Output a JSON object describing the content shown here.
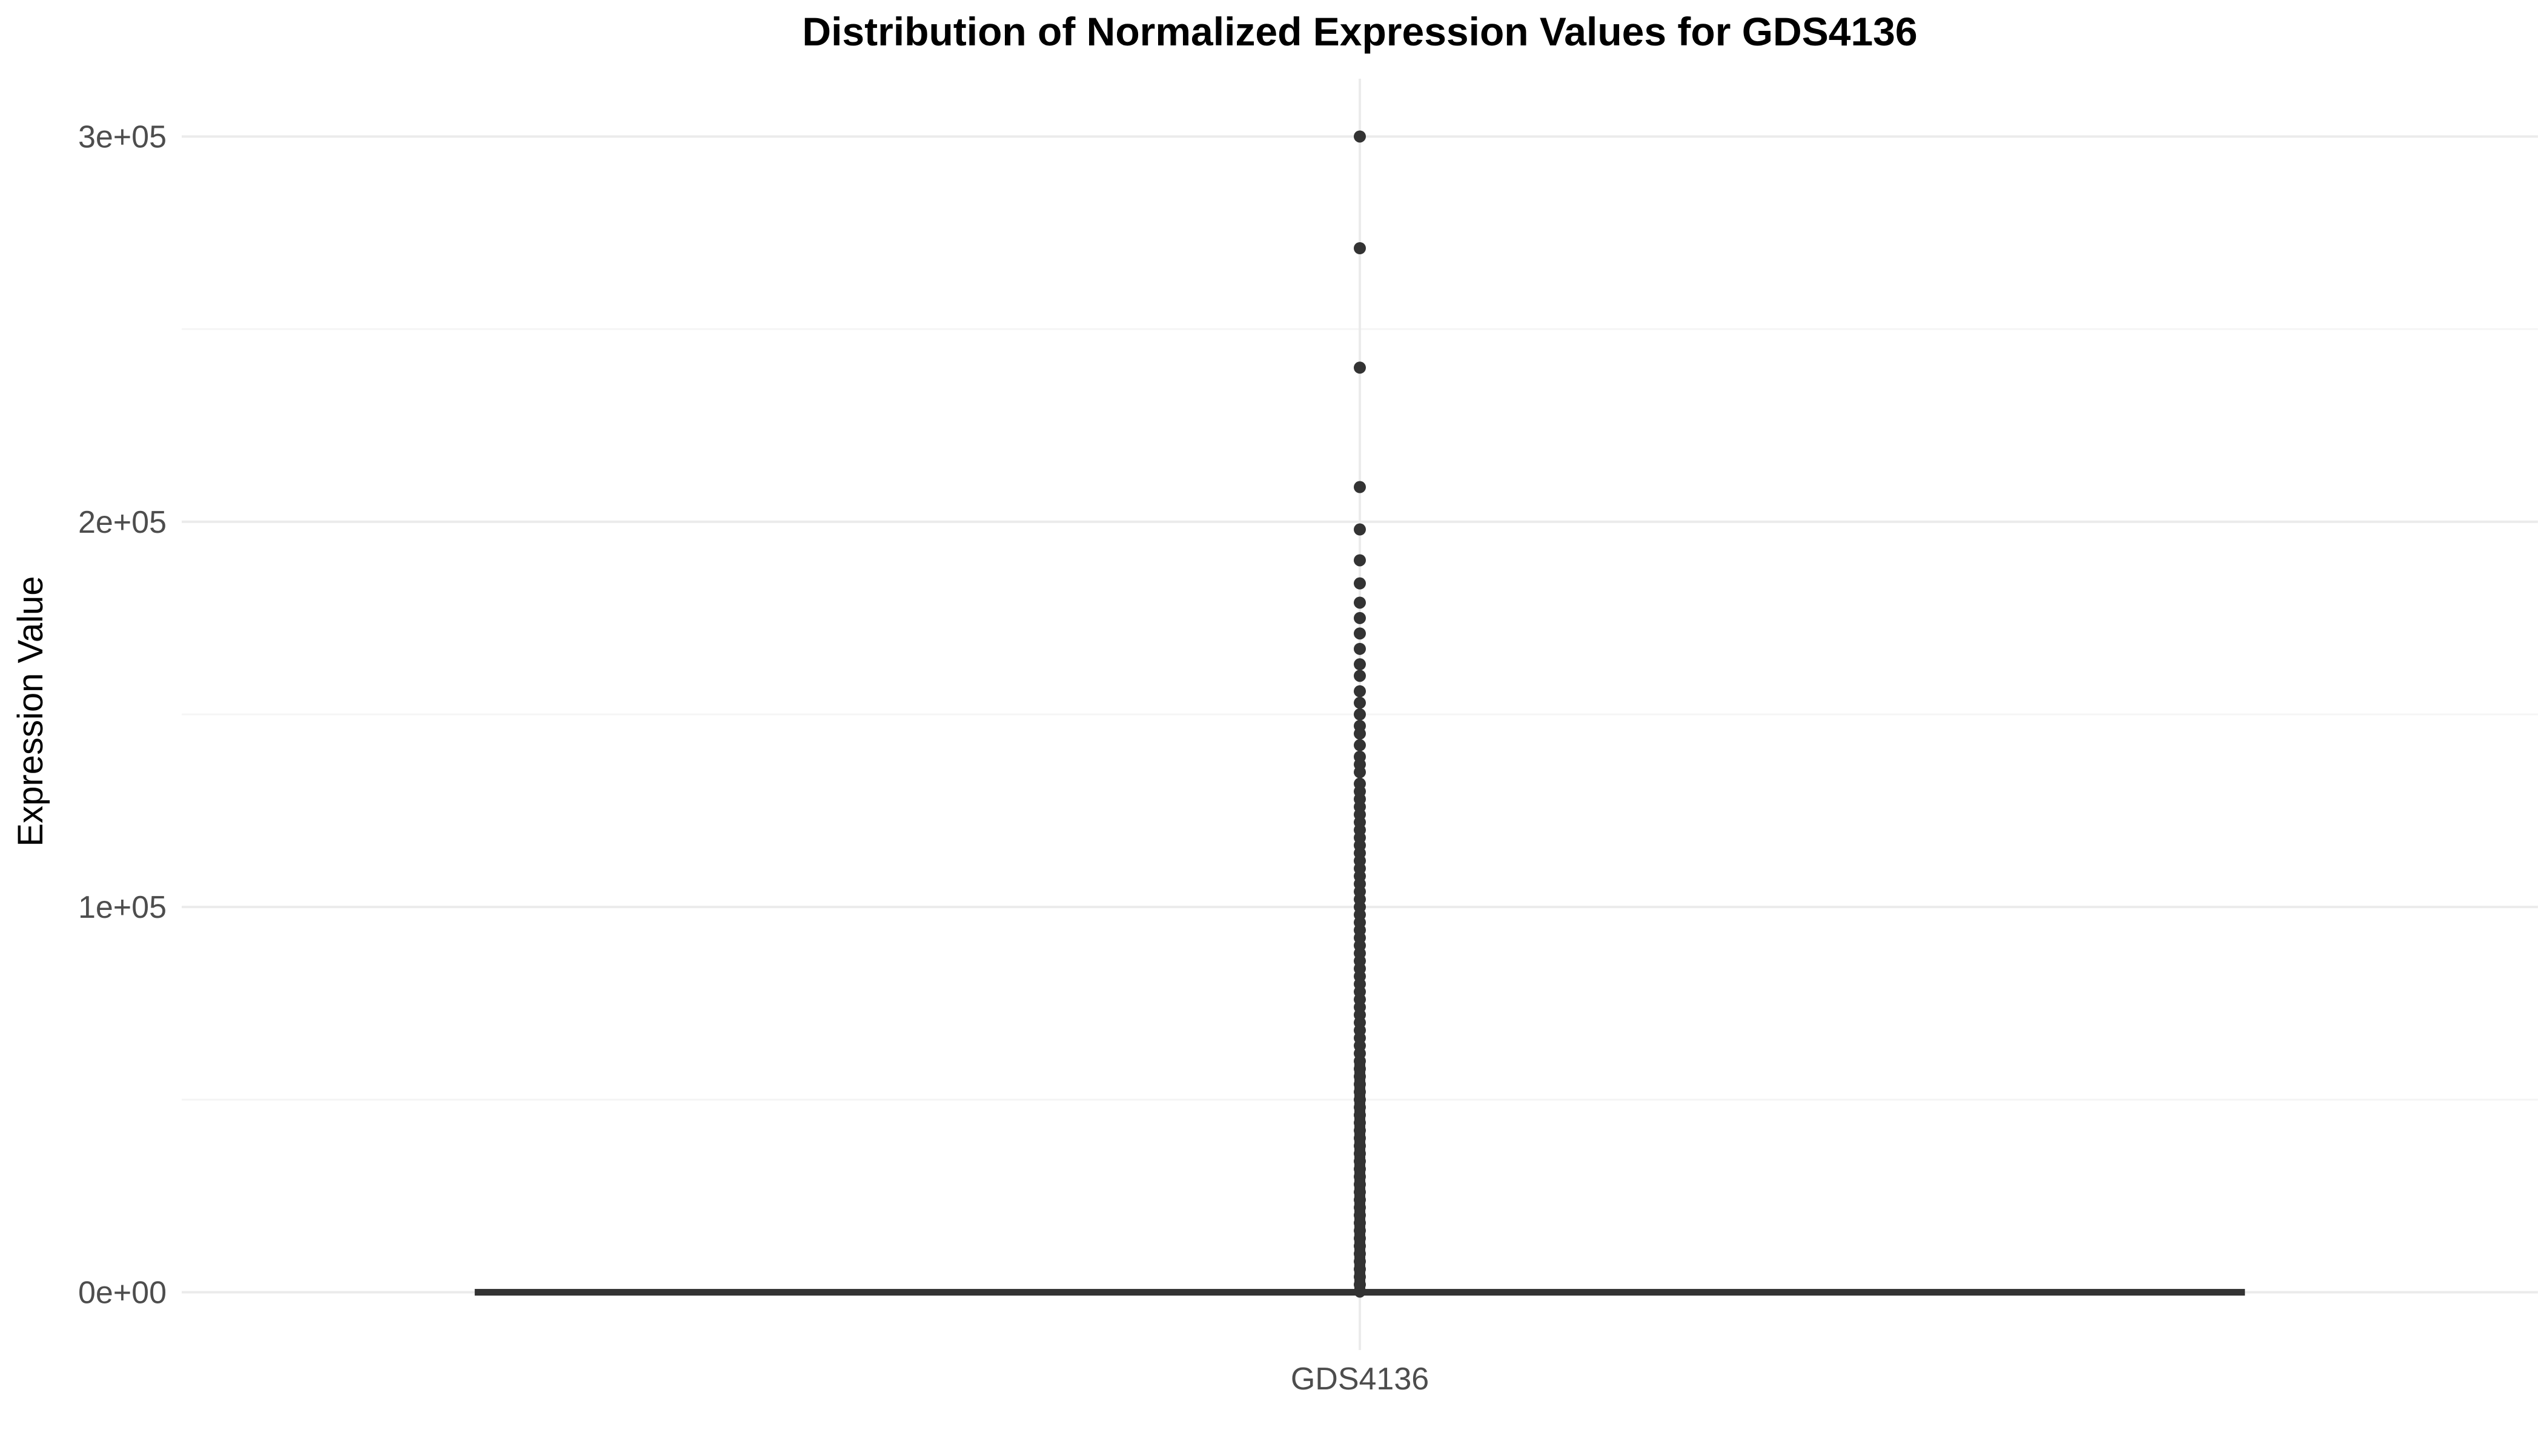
{
  "chart_data": {
    "type": "boxplot",
    "title": "Distribution of Normalized Expression Values for GDS4136",
    "xlabel": "",
    "ylabel": "Expression Value",
    "categories": [
      "GDS4136"
    ],
    "ylim": [
      -15000,
      315000
    ],
    "y_ticks": [
      {
        "value": 0,
        "label": "0e+00"
      },
      {
        "value": 100000,
        "label": "1e+05"
      },
      {
        "value": 200000,
        "label": "2e+05"
      },
      {
        "value": 300000,
        "label": "3e+05"
      }
    ],
    "y_minor_ticks": [
      50000,
      150000,
      250000
    ],
    "grid": true,
    "legend": "none",
    "colors": {
      "box": "#333333",
      "grid_major": "#ebebeb",
      "grid_minor": "#f5f5f5"
    },
    "box": {
      "category": "GDS4136",
      "q1": 0,
      "median": 0,
      "q3": 0,
      "whisker_low": 0,
      "whisker_high": 0
    },
    "outliers": [
      300000,
      271000,
      240000,
      209000,
      198000,
      190000,
      184000,
      179000,
      175000,
      171000,
      167000,
      163000,
      160000,
      156000,
      153000,
      150000,
      147000,
      145000,
      142000,
      139000,
      137000,
      135000,
      132000,
      130000,
      128000,
      126000,
      124000,
      122000,
      120000,
      118000,
      116000,
      114000,
      112000,
      110000,
      108000,
      106000,
      104000,
      102000,
      100000,
      98000,
      96000,
      94000,
      92000,
      90000,
      88000,
      86000,
      84000,
      82000,
      80000,
      78000,
      76000,
      74000,
      72000,
      70000,
      68000,
      66000,
      64000,
      62000,
      60000,
      58000,
      56000,
      54000,
      52000,
      50000,
      48000,
      46000,
      44000,
      42000,
      40000,
      38000,
      36000,
      34000,
      32000,
      30000,
      28000,
      26000,
      24000,
      22000,
      20000,
      18000,
      16000,
      14000,
      12000,
      10000,
      8000,
      6000,
      4000,
      2000
    ]
  }
}
